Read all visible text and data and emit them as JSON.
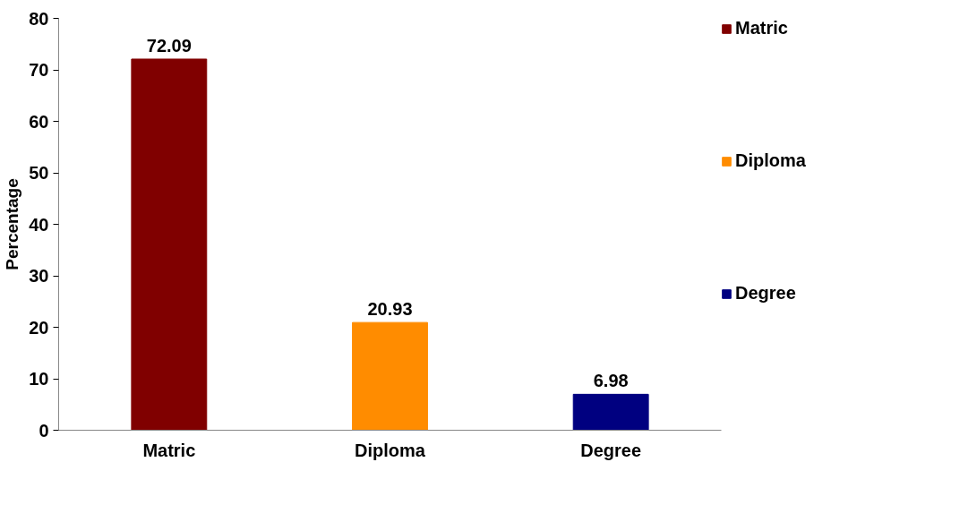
{
  "chart_data": {
    "type": "bar",
    "ylabel": "Percentage",
    "categories": [
      "Matric",
      "Diploma",
      "Degree"
    ],
    "series": [
      {
        "name": "Matric",
        "color": "#800000",
        "values": [
          72.09,
          null,
          null
        ]
      },
      {
        "name": "Diploma",
        "color": "#ff8c00",
        "values": [
          null,
          20.93,
          null
        ]
      },
      {
        "name": "Degree",
        "color": "#000080",
        "values": [
          null,
          null,
          6.98
        ]
      }
    ],
    "ylim": [
      0,
      80
    ],
    "yticks": [
      0,
      10,
      20,
      30,
      40,
      50,
      60,
      70,
      80
    ],
    "grid": false,
    "legend": "right",
    "data_labels": true
  }
}
